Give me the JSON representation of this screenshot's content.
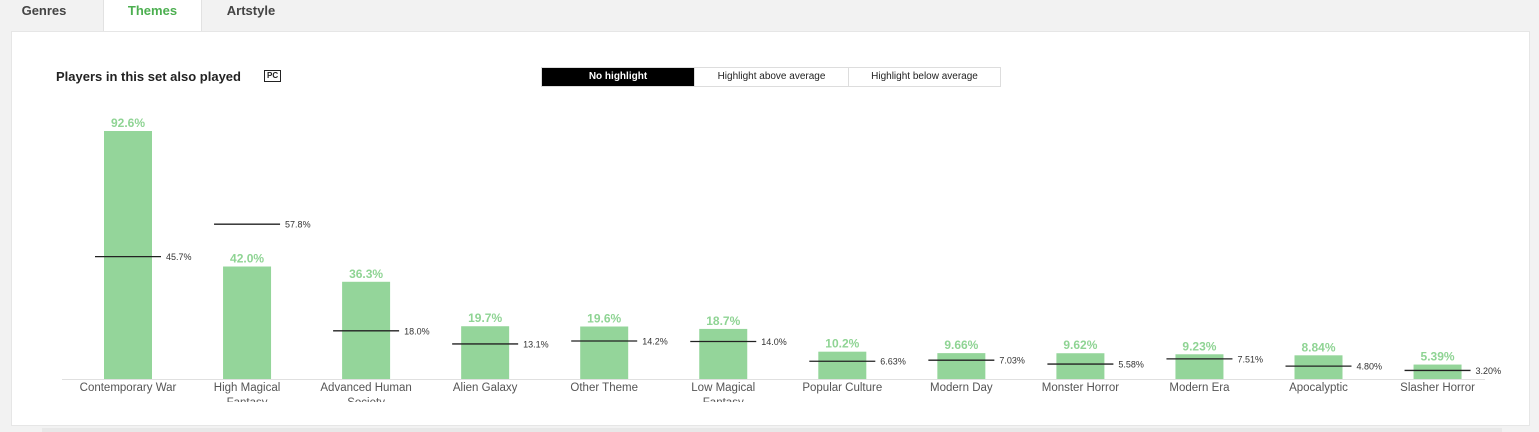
{
  "tabs": [
    {
      "label": "Genres",
      "active": false
    },
    {
      "label": "Themes",
      "active": true
    },
    {
      "label": "Artstyle",
      "active": false
    }
  ],
  "header": {
    "title": "Players in this set also played",
    "platform_badge": "PC"
  },
  "highlight_options": [
    {
      "label": "No highlight",
      "active": true
    },
    {
      "label": "Highlight above average",
      "active": false
    },
    {
      "label": "Highlight below average",
      "active": false
    }
  ],
  "colors": {
    "bar": "#94d59a",
    "value_label": "#8fd494",
    "active_tab": "#4caf50",
    "average_line": "#222222"
  },
  "chart_data": {
    "type": "bar",
    "categories": [
      "Contemporary War",
      "High Magical Fantasy",
      "Advanced Human Society",
      "Alien Galaxy",
      "Other Theme",
      "Low Magical Fantasy",
      "Popular Culture",
      "Modern Day",
      "Monster Horror",
      "Modern Era",
      "Apocalyptic",
      "Slasher Horror"
    ],
    "series": [
      {
        "values": [
          92.6,
          42.0,
          36.3,
          19.7,
          19.6,
          18.7,
          10.2,
          9.66,
          9.62,
          9.23,
          8.84,
          5.39
        ]
      },
      {
        "values": [
          45.7,
          57.8,
          18.0,
          13.1,
          14.2,
          14.0,
          6.63,
          7.03,
          5.58,
          7.51,
          4.8,
          3.2
        ]
      }
    ],
    "value_labels": [
      "92.6%",
      "42.0%",
      "36.3%",
      "19.7%",
      "19.6%",
      "18.7%",
      "10.2%",
      "9.66%",
      "9.62%",
      "9.23%",
      "8.84%",
      "5.39%"
    ],
    "average_labels": [
      "45.7%",
      "57.8%",
      "18.0%",
      "13.1%",
      "14.2%",
      "14.0%",
      "6.63%",
      "7.03%",
      "5.58%",
      "7.51%",
      "4.80%",
      "3.20%"
    ],
    "ylim": [
      0,
      100
    ],
    "grid": false,
    "legend": "none"
  }
}
